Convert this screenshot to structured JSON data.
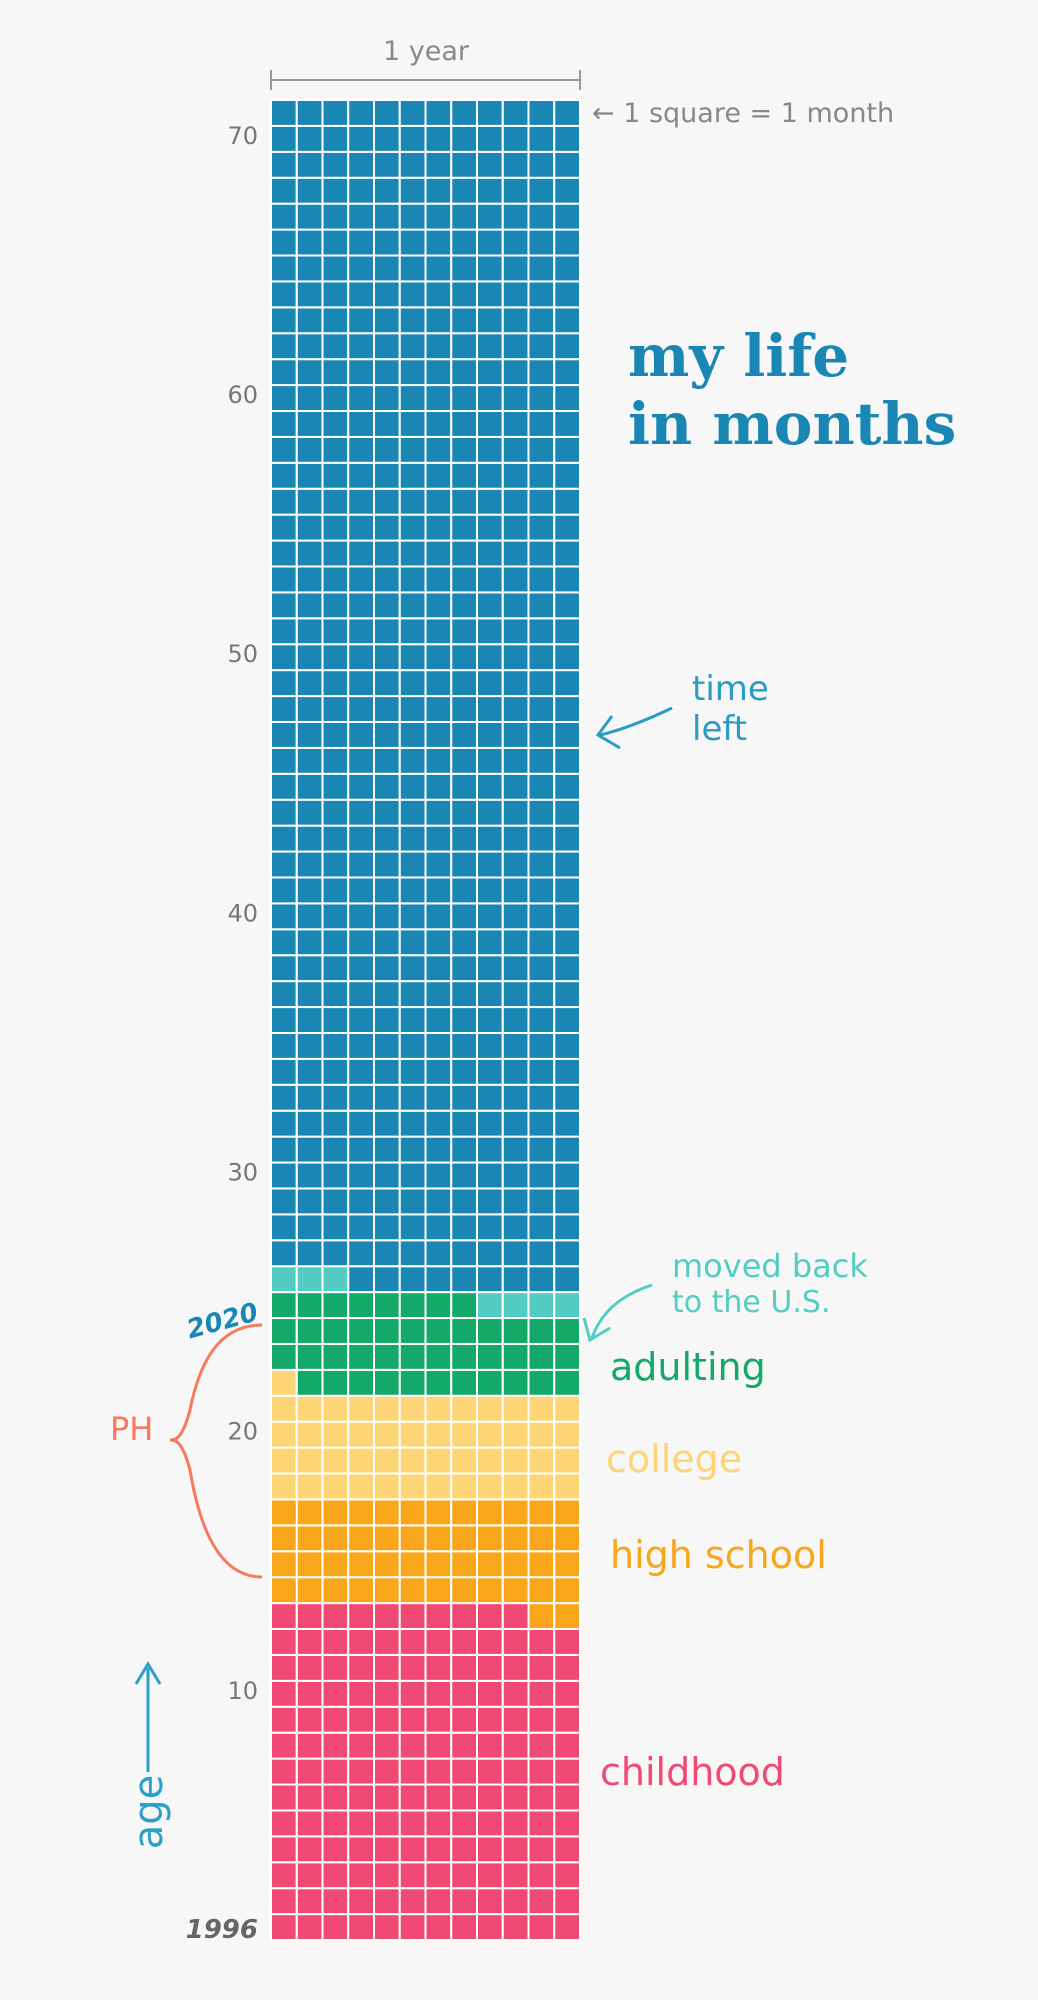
{
  "title": {
    "line1": "my life",
    "line2": "in months"
  },
  "annotations": {
    "year_label": "1 year",
    "square_legend": "← 1 square = 1 month",
    "time_left_1": "time",
    "time_left_2": "left",
    "moved_1": "moved back",
    "moved_2": "to the U.S.",
    "year_2020": "2020",
    "ph": "PH",
    "age": "age",
    "year_1996": "1996"
  },
  "colors": {
    "background": "#f7f7f7",
    "childhood": "#f04a74",
    "high_school": "#f9a61b",
    "college": "#fdd476",
    "adulting": "#13a968",
    "us": "#53cdc4",
    "time_left": "#1a86b3",
    "grid_line": "#ffffff",
    "axis_text": "#777777",
    "ph_bracket": "#f77a5e",
    "age_label": "#2aa0c8"
  },
  "chart_data": {
    "type": "waffle",
    "columns_months_per_year": 12,
    "rows_years": 71,
    "unit": "1 square = 1 month",
    "y_axis": {
      "ticks": [
        10,
        20,
        30,
        40,
        50,
        60,
        70
      ],
      "start_label": "1996"
    },
    "phases": [
      {
        "key": "childhood",
        "label": "childhood",
        "months": 154,
        "color_key": "childhood"
      },
      {
        "key": "high_school",
        "label": "high school",
        "months": 50,
        "color_key": "high_school"
      },
      {
        "key": "college",
        "label": "college",
        "months": 49,
        "color_key": "college"
      },
      {
        "key": "adulting",
        "label": "adulting",
        "months": 43,
        "color_key": "adulting"
      },
      {
        "key": "moved_back",
        "label": "",
        "months": 7,
        "color_key": "us"
      },
      {
        "key": "time_left",
        "label": "",
        "months": 549,
        "color_key": "time_left"
      }
    ]
  }
}
